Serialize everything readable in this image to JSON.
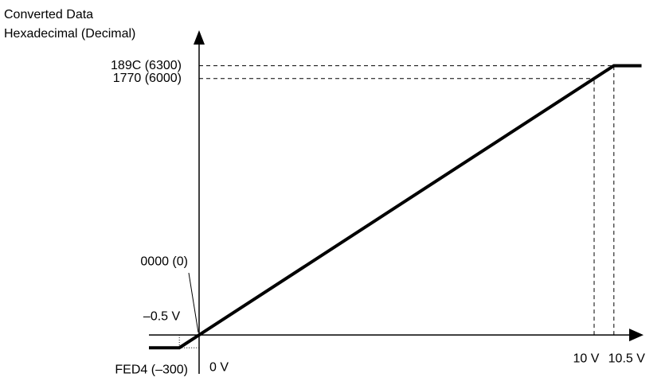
{
  "chart_data": {
    "type": "line",
    "y_label": [
      "Converted Data",
      "Hexadecimal (Decimal)"
    ],
    "x": [
      -1.27,
      -0.5,
      10.5,
      11.2
    ],
    "values": [
      -300,
      -300,
      6300,
      6300
    ],
    "color": "#000000",
    "xlim": [
      -1.27,
      11.25
    ],
    "ylim": [
      -910,
      7130
    ],
    "xticks": [
      {
        "value": -0.5,
        "label": "–0.5 V"
      },
      {
        "value": 0,
        "label": "0 V"
      },
      {
        "value": 10,
        "label": "10 V"
      },
      {
        "value": 10.5,
        "label": "10.5 V"
      }
    ],
    "yticks": [
      {
        "value": -300,
        "label": "FED4 (–300)"
      },
      {
        "value": 0,
        "label": "0000 (0)"
      },
      {
        "value": 6000,
        "label": "1770 (6000)"
      },
      {
        "value": 6300,
        "label": "189C (6300)"
      }
    ]
  }
}
